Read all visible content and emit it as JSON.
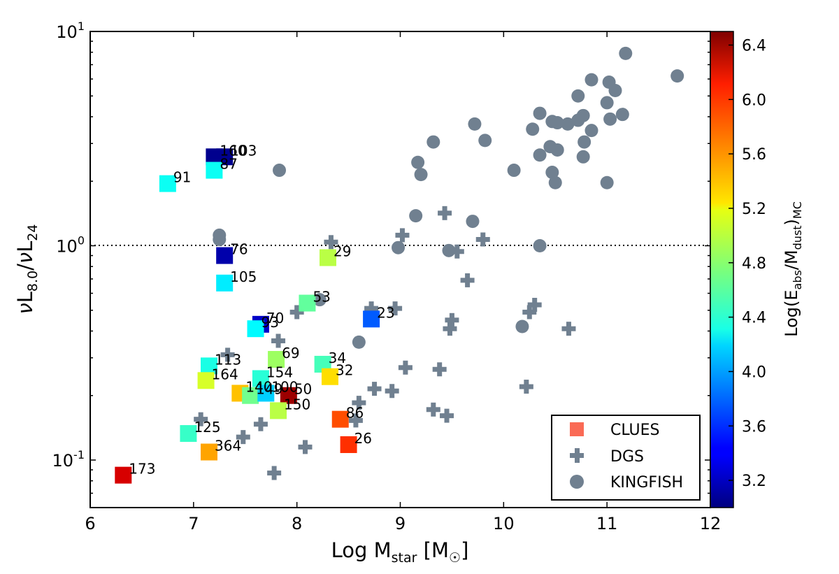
{
  "chart_data": {
    "type": "scatter",
    "xlabel": "Log M_star [M_sun]",
    "ylabel": "νL_8.0/νL_24",
    "xlim": [
      6,
      12
    ],
    "ylim": [
      0.06,
      10
    ],
    "yscale": "log",
    "x_ticks": [
      "6",
      "7",
      "8",
      "9",
      "10",
      "11",
      "12"
    ],
    "y_ticks": [
      {
        "base": "10",
        "exp": "-1",
        "value": 0.1
      },
      {
        "base": "10",
        "exp": "0",
        "value": 1
      },
      {
        "base": "10",
        "exp": "1",
        "value": 10
      }
    ],
    "reference_line": {
      "y": 1.0,
      "style": "dotted"
    },
    "colorbar": {
      "label": "Log(E_abs/M_dust)_MC",
      "range": [
        3.0,
        6.5
      ],
      "ticks": [
        "3.2",
        "3.6",
        "4.0",
        "4.4",
        "4.8",
        "5.2",
        "5.6",
        "6.0",
        "6.4"
      ],
      "colormap": "jet"
    },
    "legend": {
      "position": "bottom-right",
      "entries": [
        {
          "label": "CLUES",
          "marker": "square",
          "color": "#fa6a55"
        },
        {
          "label": "DGS",
          "marker": "plus",
          "color": "#708090"
        },
        {
          "label": "KINGFISH",
          "marker": "circle",
          "color": "#708090"
        }
      ]
    },
    "series": [
      {
        "name": "CLUES",
        "marker": "square",
        "points": [
          {
            "x": 7.2,
            "y": 2.6,
            "c": 3.05,
            "label": "160"
          },
          {
            "x": 7.3,
            "y": 2.6,
            "c": 3.05,
            "label": "103"
          },
          {
            "x": 7.2,
            "y": 2.25,
            "c": 4.35,
            "label": "87"
          },
          {
            "x": 6.75,
            "y": 1.95,
            "c": 4.35,
            "label": "91"
          },
          {
            "x": 7.3,
            "y": 0.9,
            "c": 3.15,
            "label": "76"
          },
          {
            "x": 7.3,
            "y": 0.67,
            "c": 4.25,
            "label": "105"
          },
          {
            "x": 8.3,
            "y": 0.88,
            "c": 4.95,
            "label": "29"
          },
          {
            "x": 8.1,
            "y": 0.54,
            "c": 4.65,
            "label": "53"
          },
          {
            "x": 8.72,
            "y": 0.455,
            "c": 3.75,
            "label": "23"
          },
          {
            "x": 7.65,
            "y": 0.43,
            "c": 3.25,
            "label": "70"
          },
          {
            "x": 7.6,
            "y": 0.41,
            "c": 4.3,
            "label": "93"
          },
          {
            "x": 7.8,
            "y": 0.295,
            "c": 4.85,
            "label": "69"
          },
          {
            "x": 8.25,
            "y": 0.28,
            "c": 4.55,
            "label": "34"
          },
          {
            "x": 7.15,
            "y": 0.275,
            "c": 4.4,
            "label": "113"
          },
          {
            "x": 8.32,
            "y": 0.245,
            "c": 5.3,
            "label": "32"
          },
          {
            "x": 7.65,
            "y": 0.24,
            "c": 4.45,
            "label": "154"
          },
          {
            "x": 7.12,
            "y": 0.235,
            "c": 5.05,
            "label": "164"
          },
          {
            "x": 7.45,
            "y": 0.205,
            "c": 5.4,
            "label": "140"
          },
          {
            "x": 7.55,
            "y": 0.2,
            "c": 4.7,
            "label": "149"
          },
          {
            "x": 7.7,
            "y": 0.205,
            "c": 4.15,
            "label": "100"
          },
          {
            "x": 7.92,
            "y": 0.2,
            "c": 6.4,
            "label": "50"
          },
          {
            "x": 7.82,
            "y": 0.17,
            "c": 4.95,
            "label": "150"
          },
          {
            "x": 8.42,
            "y": 0.155,
            "c": 5.8,
            "label": "86"
          },
          {
            "x": 6.95,
            "y": 0.133,
            "c": 4.5,
            "label": "125"
          },
          {
            "x": 8.5,
            "y": 0.118,
            "c": 5.9,
            "label": "26"
          },
          {
            "x": 7.15,
            "y": 0.109,
            "c": 5.5,
            "label": "364"
          },
          {
            "x": 6.32,
            "y": 0.085,
            "c": 6.2,
            "label": "173"
          }
        ]
      },
      {
        "name": "DGS",
        "marker": "plus",
        "points": [
          {
            "x": 9.43,
            "y": 1.42
          },
          {
            "x": 9.02,
            "y": 1.12
          },
          {
            "x": 8.33,
            "y": 1.04
          },
          {
            "x": 9.8,
            "y": 1.07
          },
          {
            "x": 9.55,
            "y": 0.94
          },
          {
            "x": 9.65,
            "y": 0.69
          },
          {
            "x": 8.72,
            "y": 0.51
          },
          {
            "x": 8.95,
            "y": 0.51
          },
          {
            "x": 10.3,
            "y": 0.53
          },
          {
            "x": 10.25,
            "y": 0.49
          },
          {
            "x": 9.5,
            "y": 0.45
          },
          {
            "x": 9.48,
            "y": 0.41
          },
          {
            "x": 10.63,
            "y": 0.41
          },
          {
            "x": 8.0,
            "y": 0.49
          },
          {
            "x": 7.82,
            "y": 0.36
          },
          {
            "x": 7.33,
            "y": 0.31
          },
          {
            "x": 9.05,
            "y": 0.27
          },
          {
            "x": 9.38,
            "y": 0.265
          },
          {
            "x": 8.75,
            "y": 0.215
          },
          {
            "x": 8.92,
            "y": 0.21
          },
          {
            "x": 8.6,
            "y": 0.185
          },
          {
            "x": 10.22,
            "y": 0.22
          },
          {
            "x": 9.32,
            "y": 0.172
          },
          {
            "x": 9.45,
            "y": 0.161
          },
          {
            "x": 8.57,
            "y": 0.153
          },
          {
            "x": 7.65,
            "y": 0.147
          },
          {
            "x": 7.07,
            "y": 0.155
          },
          {
            "x": 7.48,
            "y": 0.128
          },
          {
            "x": 8.08,
            "y": 0.115
          },
          {
            "x": 7.78,
            "y": 0.087
          }
        ]
      },
      {
        "name": "KINGFISH",
        "marker": "circle",
        "points": [
          {
            "x": 11.18,
            "y": 7.9
          },
          {
            "x": 11.68,
            "y": 6.2
          },
          {
            "x": 10.85,
            "y": 5.95
          },
          {
            "x": 11.02,
            "y": 5.8
          },
          {
            "x": 11.08,
            "y": 5.3
          },
          {
            "x": 10.72,
            "y": 5.0
          },
          {
            "x": 11.0,
            "y": 4.65
          },
          {
            "x": 10.35,
            "y": 4.15
          },
          {
            "x": 11.15,
            "y": 4.1
          },
          {
            "x": 10.77,
            "y": 4.05
          },
          {
            "x": 11.03,
            "y": 3.9
          },
          {
            "x": 10.72,
            "y": 3.85
          },
          {
            "x": 10.47,
            "y": 3.8
          },
          {
            "x": 10.52,
            "y": 3.75
          },
          {
            "x": 10.62,
            "y": 3.7
          },
          {
            "x": 9.72,
            "y": 3.7
          },
          {
            "x": 10.28,
            "y": 3.5
          },
          {
            "x": 10.85,
            "y": 3.45
          },
          {
            "x": 9.82,
            "y": 3.1
          },
          {
            "x": 9.32,
            "y": 3.05
          },
          {
            "x": 10.78,
            "y": 3.05
          },
          {
            "x": 10.45,
            "y": 2.9
          },
          {
            "x": 10.52,
            "y": 2.8
          },
          {
            "x": 10.35,
            "y": 2.65
          },
          {
            "x": 10.77,
            "y": 2.6
          },
          {
            "x": 9.17,
            "y": 2.45
          },
          {
            "x": 7.83,
            "y": 2.25
          },
          {
            "x": 10.1,
            "y": 2.25
          },
          {
            "x": 10.47,
            "y": 2.2
          },
          {
            "x": 9.2,
            "y": 2.15
          },
          {
            "x": 10.5,
            "y": 1.97
          },
          {
            "x": 11.0,
            "y": 1.97
          },
          {
            "x": 9.15,
            "y": 1.38
          },
          {
            "x": 9.7,
            "y": 1.3
          },
          {
            "x": 7.25,
            "y": 1.12
          },
          {
            "x": 7.25,
            "y": 1.07
          },
          {
            "x": 10.35,
            "y": 1.0
          },
          {
            "x": 8.98,
            "y": 0.98
          },
          {
            "x": 9.47,
            "y": 0.95
          },
          {
            "x": 8.22,
            "y": 0.56
          },
          {
            "x": 10.18,
            "y": 0.42
          },
          {
            "x": 8.6,
            "y": 0.355
          }
        ]
      }
    ]
  }
}
